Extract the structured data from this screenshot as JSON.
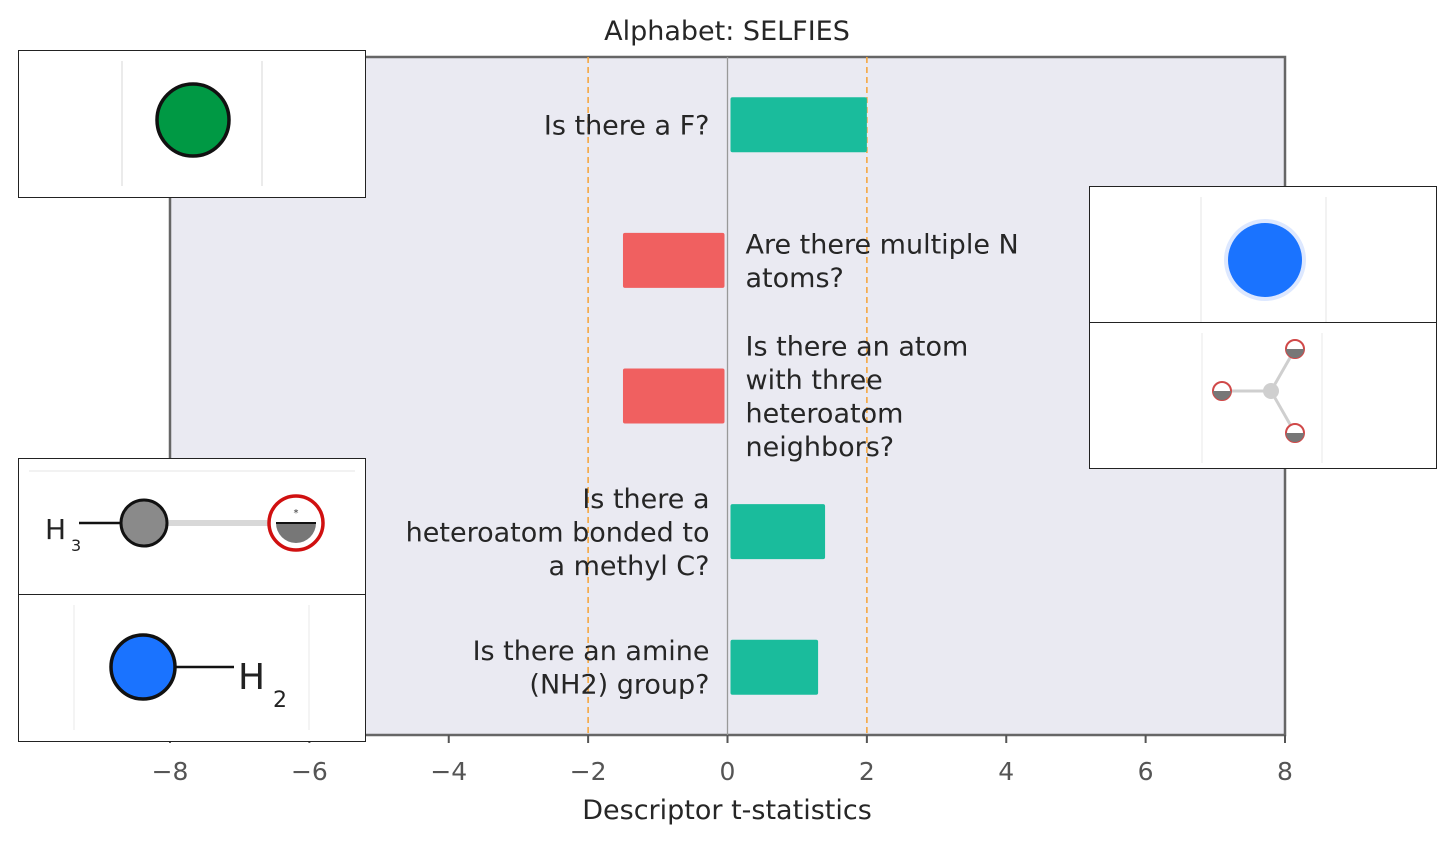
{
  "chart_data": {
    "type": "bar",
    "orientation": "horizontal",
    "title": "Alphabet: SELFIES",
    "xlabel": "Descriptor t-statistics",
    "xlim": [
      -8,
      8
    ],
    "xticks": [
      -8,
      -6,
      -4,
      -2,
      0,
      2,
      4,
      6,
      8
    ],
    "xtick_labels": [
      "−8",
      "−6",
      "−4",
      "−2",
      "0",
      "2",
      "4",
      "6",
      "8"
    ],
    "significance_lines": [
      -2,
      2
    ],
    "grid": false,
    "bars": [
      {
        "label_lines": [
          "Is there a F?"
        ],
        "value": 2.0
      },
      {
        "label_lines": [
          "Are there multiple N",
          "atoms?"
        ],
        "value": -1.5
      },
      {
        "label_lines": [
          "Is there an atom",
          "with three",
          "heteroatom",
          "neighbors?"
        ],
        "value": -1.5
      },
      {
        "label_lines": [
          "Is there a",
          "heteroatom bonded to",
          "a methyl C?"
        ],
        "value": 1.4
      },
      {
        "label_lines": [
          "Is there an amine",
          "(NH2) group?"
        ],
        "value": 1.3
      }
    ]
  },
  "colors": {
    "positive": "#1abc9c",
    "negative": "#f06060",
    "plot_background": "#eaeaf2",
    "significance_line": "#f5a742",
    "zero_line": "#999999",
    "text": "#262626",
    "tick_text": "#555555"
  },
  "insets": {
    "fluorine": {
      "color": "#009944"
    },
    "nitrogen": {
      "color": "#1a73ff"
    },
    "methyl_label_main": "H",
    "methyl_label_sub": "3",
    "amine_label_main": "H",
    "amine_label_sub": "2"
  }
}
